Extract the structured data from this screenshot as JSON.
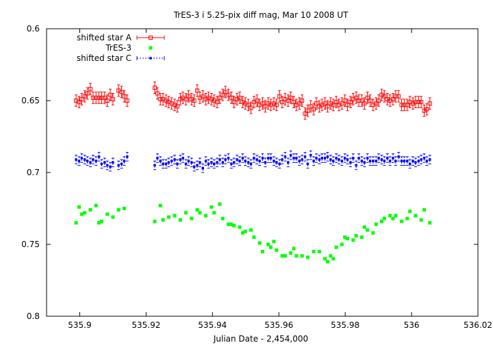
{
  "chart_data": {
    "type": "scatter",
    "title": "TrES-3 i 5.25-pix diff mag, Mar 10 2008 UT",
    "xlabel": "Julian Date - 2,454,000",
    "ylabel": "",
    "xlim": [
      535.89,
      536.02
    ],
    "ylim": [
      0.8,
      0.6
    ],
    "y_axis_inverted": true,
    "xticks": [
      "535.9",
      "535.92",
      "535.94",
      "535.96",
      "535.98",
      "536",
      "536.02"
    ],
    "xtick_values": [
      535.9,
      535.92,
      535.94,
      535.96,
      535.98,
      536.0,
      536.02
    ],
    "yticks": [
      "0.6",
      "0.65",
      "0.7",
      "0.75",
      "0.8"
    ],
    "ytick_values": [
      0.6,
      0.65,
      0.7,
      0.75,
      0.8
    ],
    "grid": false,
    "legend_position": "top-left",
    "series": [
      {
        "name": "shifted star A",
        "color": "#ff0000",
        "marker": "open-square",
        "error_bars": true,
        "error": 0.004,
        "x": [
          535.8989,
          535.8998,
          535.9006,
          535.9015,
          535.9023,
          535.9032,
          535.904,
          535.9049,
          535.9058,
          535.9066,
          535.9075,
          535.9083,
          535.9092,
          535.91,
          535.9117,
          535.9126,
          535.9134,
          535.9143,
          535.9226,
          535.9234,
          535.9243,
          535.9251,
          535.926,
          535.9268,
          535.9277,
          535.9286,
          535.9294,
          535.9303,
          535.9311,
          535.932,
          535.9328,
          535.9337,
          535.9345,
          535.9354,
          535.9362,
          535.9371,
          535.938,
          535.9388,
          535.9397,
          535.9405,
          535.9414,
          535.9422,
          535.9431,
          535.9439,
          535.9448,
          535.9457,
          535.9465,
          535.9474,
          535.9482,
          535.9491,
          535.9499,
          535.9508,
          535.9516,
          535.9525,
          535.9534,
          535.9542,
          535.9551,
          535.9559,
          535.9568,
          535.9576,
          535.9585,
          535.9593,
          535.9602,
          535.961,
          535.9619,
          535.9628,
          535.9636,
          535.9645,
          535.9653,
          535.9662,
          535.967,
          535.9679,
          535.9687,
          535.9696,
          535.9705,
          535.9713,
          535.9722,
          535.973,
          535.9739,
          535.9747,
          535.9756,
          535.9764,
          535.9773,
          535.9781,
          535.979,
          535.9799,
          535.9807,
          535.9816,
          535.9824,
          535.9833,
          535.9841,
          535.985,
          535.9858,
          535.9867,
          535.9875,
          535.9884,
          535.9893,
          535.9901,
          535.991,
          535.9918,
          535.9927,
          535.9935,
          535.9944,
          535.9952,
          535.9961,
          535.997,
          535.9978,
          535.9987,
          535.9995,
          536.0004,
          536.0012,
          536.0021,
          536.0029,
          536.0038,
          536.0046,
          536.0055
        ],
        "y": [
          0.65,
          0.651,
          0.649,
          0.647,
          0.645,
          0.642,
          0.648,
          0.648,
          0.648,
          0.648,
          0.648,
          0.65,
          0.646,
          0.649,
          0.643,
          0.644,
          0.647,
          0.65,
          0.641,
          0.645,
          0.649,
          0.649,
          0.65,
          0.651,
          0.652,
          0.653,
          0.654,
          0.649,
          0.648,
          0.649,
          0.647,
          0.649,
          0.65,
          0.643,
          0.648,
          0.647,
          0.649,
          0.648,
          0.649,
          0.65,
          0.651,
          0.648,
          0.646,
          0.644,
          0.646,
          0.648,
          0.651,
          0.649,
          0.648,
          0.651,
          0.652,
          0.653,
          0.655,
          0.651,
          0.65,
          0.653,
          0.652,
          0.654,
          0.652,
          0.653,
          0.652,
          0.653,
          0.647,
          0.651,
          0.649,
          0.65,
          0.648,
          0.651,
          0.653,
          0.652,
          0.65,
          0.659,
          0.657,
          0.654,
          0.656,
          0.652,
          0.654,
          0.653,
          0.652,
          0.654,
          0.652,
          0.653,
          0.651,
          0.653,
          0.652,
          0.65,
          0.653,
          0.651,
          0.649,
          0.648,
          0.65,
          0.65,
          0.652,
          0.648,
          0.65,
          0.653,
          0.652,
          0.65,
          0.646,
          0.647,
          0.649,
          0.65,
          0.649,
          0.647,
          0.647,
          0.653,
          0.653,
          0.653,
          0.651,
          0.652,
          0.651,
          0.651,
          0.651,
          0.657,
          0.656,
          0.652
        ]
      },
      {
        "name": "TrES-3",
        "color": "#00ff00",
        "marker": "filled-square",
        "error_bars": false,
        "x": [
          535.8989,
          535.8998,
          535.9006,
          535.9015,
          535.9032,
          535.9049,
          535.9058,
          535.9066,
          535.9083,
          535.91,
          535.9117,
          535.9134,
          535.9226,
          535.9243,
          535.9251,
          535.9268,
          535.9286,
          535.9303,
          535.932,
          535.9337,
          535.9354,
          535.9362,
          535.938,
          535.9397,
          535.9405,
          535.9422,
          535.9431,
          535.9448,
          535.9457,
          535.9465,
          535.9482,
          535.9491,
          535.9499,
          535.9516,
          535.9525,
          535.9542,
          535.9551,
          535.9568,
          535.9576,
          535.9585,
          535.9593,
          535.961,
          535.9619,
          535.9636,
          535.9645,
          535.9653,
          535.967,
          535.9687,
          535.9705,
          535.9722,
          535.9739,
          535.9747,
          535.9756,
          535.9764,
          535.9773,
          535.979,
          535.9799,
          535.9807,
          535.9824,
          535.9833,
          535.985,
          535.9858,
          535.9867,
          535.9884,
          535.9893,
          535.991,
          535.9918,
          535.9935,
          535.9944,
          535.9952,
          535.997,
          535.9987,
          535.9995,
          536.0012,
          536.0029,
          536.0038,
          536.0055
        ],
        "y": [
          0.735,
          0.724,
          0.729,
          0.728,
          0.726,
          0.723,
          0.735,
          0.734,
          0.729,
          0.731,
          0.726,
          0.725,
          0.734,
          0.723,
          0.733,
          0.731,
          0.73,
          0.733,
          0.728,
          0.732,
          0.726,
          0.728,
          0.73,
          0.724,
          0.728,
          0.722,
          0.732,
          0.736,
          0.736,
          0.737,
          0.738,
          0.742,
          0.741,
          0.74,
          0.745,
          0.749,
          0.755,
          0.75,
          0.752,
          0.748,
          0.754,
          0.758,
          0.758,
          0.756,
          0.753,
          0.758,
          0.758,
          0.759,
          0.755,
          0.755,
          0.76,
          0.762,
          0.758,
          0.76,
          0.752,
          0.75,
          0.745,
          0.746,
          0.747,
          0.744,
          0.745,
          0.738,
          0.74,
          0.742,
          0.736,
          0.734,
          0.732,
          0.73,
          0.732,
          0.73,
          0.734,
          0.732,
          0.727,
          0.73,
          0.733,
          0.726,
          0.735
        ]
      },
      {
        "name": "shifted star C",
        "color": "#0000ff",
        "marker": "filled-square",
        "error_bars": true,
        "error": 0.003,
        "x": [
          535.8989,
          535.8998,
          535.9006,
          535.9015,
          535.9023,
          535.9032,
          535.904,
          535.9049,
          535.9058,
          535.9066,
          535.9075,
          535.9083,
          535.9092,
          535.91,
          535.9117,
          535.9126,
          535.9134,
          535.9143,
          535.9226,
          535.9234,
          535.9243,
          535.9251,
          535.926,
          535.9268,
          535.9277,
          535.9286,
          535.9294,
          535.9303,
          535.9311,
          535.932,
          535.9328,
          535.9337,
          535.9345,
          535.9354,
          535.9362,
          535.9371,
          535.938,
          535.9388,
          535.9397,
          535.9405,
          535.9414,
          535.9422,
          535.9431,
          535.9439,
          535.9448,
          535.9457,
          535.9465,
          535.9474,
          535.9482,
          535.9491,
          535.9499,
          535.9508,
          535.9516,
          535.9525,
          535.9534,
          535.9542,
          535.9551,
          535.9559,
          535.9568,
          535.9576,
          535.9585,
          535.9593,
          535.9602,
          535.961,
          535.9619,
          535.9628,
          535.9636,
          535.9645,
          535.9653,
          535.9662,
          535.967,
          535.9679,
          535.9687,
          535.9696,
          535.9705,
          535.9713,
          535.9722,
          535.973,
          535.9739,
          535.9747,
          535.9756,
          535.9764,
          535.9773,
          535.9781,
          535.979,
          535.9799,
          535.9807,
          535.9816,
          535.9824,
          535.9833,
          535.9841,
          535.985,
          535.9858,
          535.9867,
          535.9875,
          535.9884,
          535.9893,
          535.9901,
          535.991,
          535.9918,
          535.9927,
          535.9935,
          535.9944,
          535.9952,
          535.9961,
          535.997,
          535.9978,
          535.9987,
          535.9995,
          536.0004,
          536.0012,
          536.0021,
          536.0029,
          536.0038,
          536.0046,
          536.0055
        ],
        "y": [
          0.691,
          0.692,
          0.69,
          0.691,
          0.692,
          0.693,
          0.691,
          0.692,
          0.689,
          0.694,
          0.693,
          0.695,
          0.696,
          0.693,
          0.695,
          0.694,
          0.692,
          0.689,
          0.695,
          0.69,
          0.692,
          0.694,
          0.694,
          0.693,
          0.692,
          0.691,
          0.694,
          0.691,
          0.69,
          0.694,
          0.692,
          0.693,
          0.696,
          0.695,
          0.693,
          0.697,
          0.692,
          0.694,
          0.693,
          0.694,
          0.693,
          0.691,
          0.693,
          0.691,
          0.69,
          0.694,
          0.693,
          0.691,
          0.692,
          0.69,
          0.692,
          0.693,
          0.694,
          0.69,
          0.691,
          0.692,
          0.69,
          0.693,
          0.69,
          0.69,
          0.692,
          0.693,
          0.694,
          0.691,
          0.689,
          0.693,
          0.688,
          0.69,
          0.69,
          0.692,
          0.691,
          0.689,
          0.694,
          0.688,
          0.692,
          0.69,
          0.691,
          0.69,
          0.69,
          0.689,
          0.691,
          0.692,
          0.69,
          0.691,
          0.692,
          0.69,
          0.691,
          0.693,
          0.69,
          0.695,
          0.69,
          0.692,
          0.693,
          0.69,
          0.692,
          0.692,
          0.692,
          0.69,
          0.691,
          0.692,
          0.69,
          0.692,
          0.69,
          0.692,
          0.689,
          0.692,
          0.692,
          0.692,
          0.694,
          0.692,
          0.693,
          0.692,
          0.691,
          0.69,
          0.692,
          0.691
        ]
      }
    ]
  }
}
